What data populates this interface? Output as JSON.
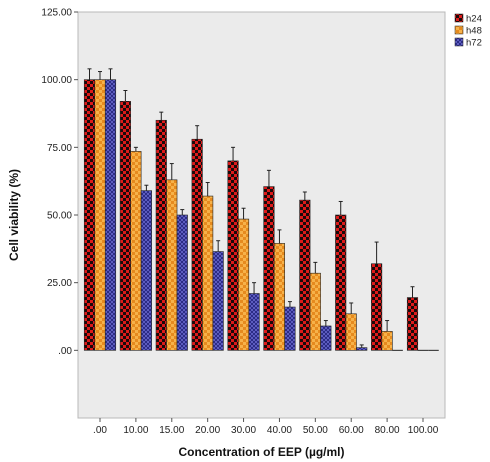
{
  "chart_data": {
    "type": "bar",
    "xlabel": "Concentration of EEP (µg/ml)",
    "ylabel": "Cell viability (%)",
    "ylim": [
      -25,
      125
    ],
    "yticks": [
      ".00",
      "25.00",
      "50.00",
      "75.00",
      "100.00",
      "125.00"
    ],
    "ytick_values": [
      0,
      25,
      50,
      75,
      100,
      125
    ],
    "categories": [
      ".00",
      "10.00",
      "15.00",
      "20.00",
      "30.00",
      "40.00",
      "50.00",
      "60.00",
      "80.00",
      "100.00"
    ],
    "legend_position": "top-right",
    "series": [
      {
        "name": "h24",
        "color": "#cc1111",
        "pattern": "checker-red",
        "values": [
          100,
          92,
          85,
          78,
          70,
          60.5,
          55.5,
          50,
          32,
          19.5
        ],
        "errors": [
          4,
          4,
          3,
          5,
          5,
          6,
          3,
          5,
          8,
          4
        ]
      },
      {
        "name": "h48",
        "color": "#f0a030",
        "pattern": "checker-orange",
        "values": [
          100,
          73.5,
          63,
          57,
          48.5,
          39.5,
          28.5,
          13.5,
          7,
          0
        ],
        "errors": [
          3,
          1.5,
          6,
          5,
          4,
          5,
          4,
          4,
          4,
          0
        ]
      },
      {
        "name": "h72",
        "color": "#3a3aa8",
        "pattern": "crosshatch-blue",
        "values": [
          100,
          59,
          50,
          36.5,
          21,
          16,
          9,
          1,
          0,
          0
        ],
        "errors": [
          4,
          2,
          2,
          4,
          4,
          2,
          2,
          1,
          0,
          0
        ]
      }
    ]
  }
}
